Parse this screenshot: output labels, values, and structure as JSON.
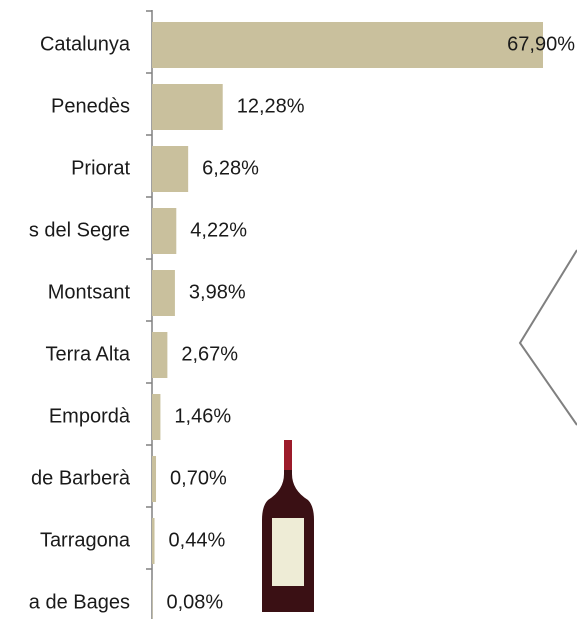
{
  "chart_data": {
    "type": "bar",
    "orientation": "horizontal",
    "categories": [
      "Catalunya",
      "Penedès",
      "Priorat",
      "s del Segre",
      "Montsant",
      "Terra Alta",
      "Empordà",
      "de Barberà",
      "Tarragona",
      "a de Bages"
    ],
    "values": [
      67.9,
      12.28,
      6.28,
      4.22,
      3.98,
      2.67,
      1.46,
      0.7,
      0.44,
      0.08
    ],
    "value_labels": [
      "67,90%",
      "12,28%",
      "6,28%",
      "4,22%",
      "3,98%",
      "2,67%",
      "1,46%",
      "0,70%",
      "0,44%",
      "0,08%"
    ],
    "color": "#c9c09d"
  }
}
